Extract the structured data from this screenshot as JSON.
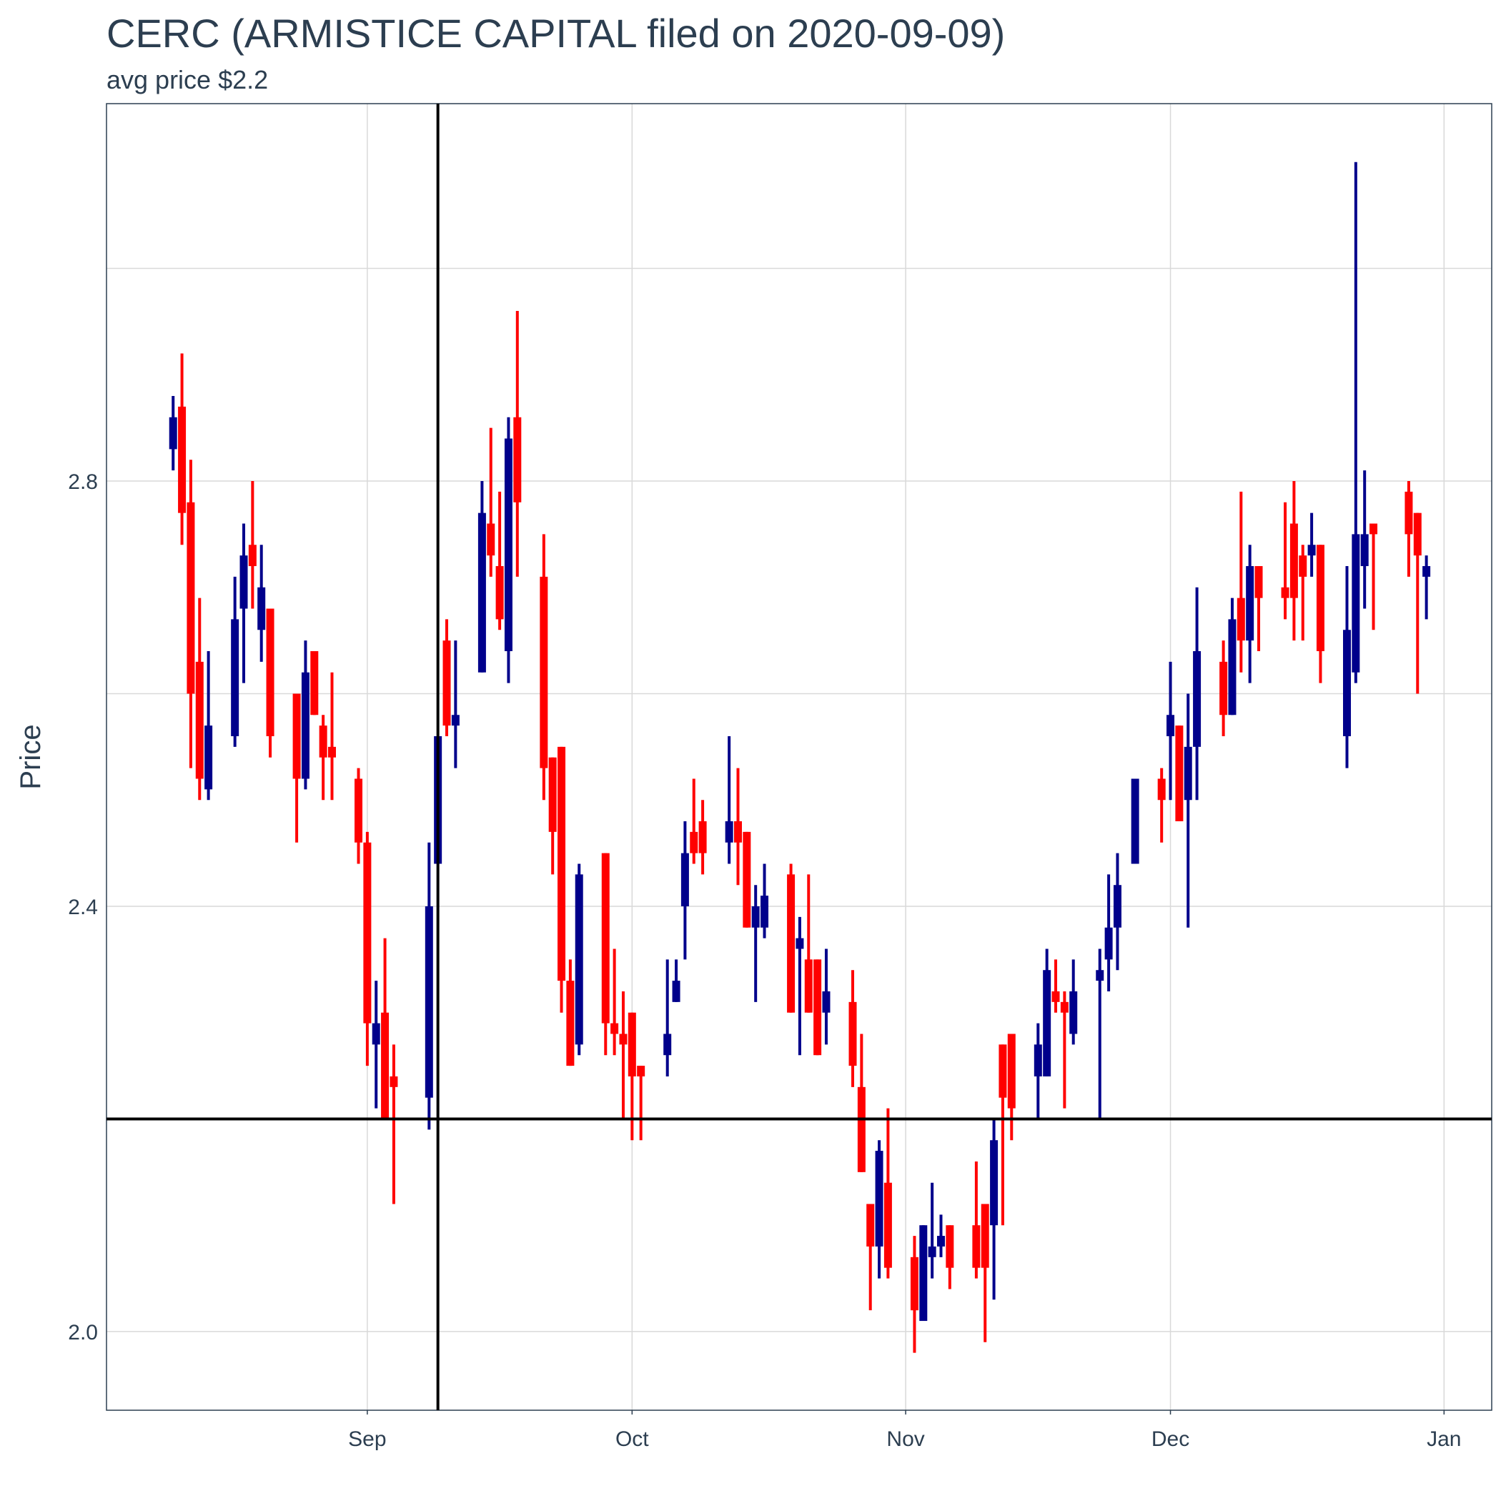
{
  "chart_data": {
    "type": "candlestick",
    "title": "CERC (ARMISTICE CAPITAL filed on 2020-09-09)",
    "subtitle": "avg price $2.2",
    "y_label": "Price",
    "up_color": "#00008b",
    "down_color": "#ff0000",
    "grid": true,
    "xlim": [
      214.45,
      371.4
    ],
    "ylim": [
      1.926,
      3.155
    ],
    "xticks": [
      {
        "value": 244,
        "label": "Sep"
      },
      {
        "value": 274,
        "label": "Oct"
      },
      {
        "value": 305,
        "label": "Nov"
      },
      {
        "value": 335,
        "label": "Dec"
      },
      {
        "value": 366,
        "label": "Jan"
      }
    ],
    "yticks": [
      {
        "value": 2,
        "label": "2.0"
      },
      2.4,
      2.8
    ],
    "y_minor_ticks": [
      2.2,
      2.6,
      3.0
    ],
    "vline": 252,
    "hline": 2.2,
    "x": [
      222,
      223,
      224,
      225,
      226,
      229,
      230,
      231,
      232,
      233,
      236,
      237,
      238,
      239,
      240,
      243,
      244,
      245,
      246,
      247,
      251,
      252,
      253,
      254,
      257,
      258,
      259,
      260,
      261,
      264,
      265,
      266,
      267,
      268,
      271,
      272,
      273,
      274,
      275,
      278,
      279,
      280,
      281,
      282,
      285,
      286,
      287,
      288,
      289,
      292,
      293,
      294,
      295,
      296,
      299,
      300,
      301,
      302,
      303,
      306,
      307,
      308,
      309,
      310,
      313,
      314,
      315,
      316,
      317,
      320,
      321,
      322,
      323,
      324,
      327,
      328,
      329,
      331,
      334,
      335,
      336,
      337,
      338,
      341,
      342,
      343,
      344,
      345,
      348,
      349,
      350,
      351,
      352,
      355,
      356,
      357,
      358,
      362,
      363,
      364
    ],
    "open": [
      2.83,
      2.87,
      2.78,
      2.63,
      2.51,
      2.56,
      2.68,
      2.74,
      2.66,
      2.68,
      2.6,
      2.52,
      2.64,
      2.57,
      2.55,
      2.52,
      2.46,
      2.27,
      2.3,
      2.24,
      2.22,
      2.44,
      2.65,
      2.57,
      2.62,
      2.76,
      2.72,
      2.64,
      2.86,
      2.71,
      2.54,
      2.55,
      2.33,
      2.27,
      2.45,
      2.29,
      2.28,
      2.3,
      2.25,
      2.26,
      2.31,
      2.4,
      2.47,
      2.48,
      2.46,
      2.48,
      2.47,
      2.38,
      2.38,
      2.43,
      2.36,
      2.35,
      2.35,
      2.3,
      2.31,
      2.23,
      2.12,
      2.08,
      2.14,
      2.07,
      2.01,
      2.07,
      2.08,
      2.1,
      2.1,
      2.12,
      2.1,
      2.27,
      2.28,
      2.24,
      2.24,
      2.32,
      2.31,
      2.28,
      2.33,
      2.35,
      2.38,
      2.44,
      2.52,
      2.56,
      2.57,
      2.5,
      2.55,
      2.63,
      2.58,
      2.69,
      2.65,
      2.72,
      2.7,
      2.76,
      2.73,
      2.73,
      2.74,
      2.56,
      2.62,
      2.72,
      2.76,
      2.79,
      2.77,
      2.71
    ],
    "high": [
      2.88,
      2.92,
      2.82,
      2.69,
      2.64,
      2.71,
      2.76,
      2.8,
      2.74,
      2.68,
      2.6,
      2.65,
      2.64,
      2.58,
      2.62,
      2.53,
      2.47,
      2.33,
      2.37,
      2.27,
      2.46,
      2.56,
      2.67,
      2.65,
      2.8,
      2.85,
      2.79,
      2.86,
      2.96,
      2.75,
      2.54,
      2.55,
      2.35,
      2.44,
      2.45,
      2.36,
      2.32,
      2.3,
      2.25,
      2.35,
      2.35,
      2.48,
      2.52,
      2.5,
      2.56,
      2.53,
      2.47,
      2.42,
      2.44,
      2.44,
      2.39,
      2.43,
      2.35,
      2.36,
      2.34,
      2.28,
      2.12,
      2.18,
      2.21,
      2.09,
      2.1,
      2.14,
      2.11,
      2.1,
      2.16,
      2.12,
      2.2,
      2.27,
      2.28,
      2.29,
      2.36,
      2.35,
      2.32,
      2.35,
      2.36,
      2.43,
      2.45,
      2.52,
      2.53,
      2.63,
      2.57,
      2.6,
      2.7,
      2.65,
      2.69,
      2.79,
      2.74,
      2.72,
      2.78,
      2.8,
      2.74,
      2.77,
      2.74,
      2.72,
      3.1,
      2.81,
      2.76,
      2.8,
      2.77,
      2.73
    ],
    "low": [
      2.81,
      2.74,
      2.53,
      2.5,
      2.5,
      2.55,
      2.61,
      2.68,
      2.63,
      2.54,
      2.46,
      2.51,
      2.58,
      2.5,
      2.5,
      2.44,
      2.25,
      2.21,
      2.2,
      2.12,
      2.19,
      2.44,
      2.56,
      2.53,
      2.62,
      2.71,
      2.66,
      2.61,
      2.71,
      2.5,
      2.43,
      2.3,
      2.25,
      2.26,
      2.26,
      2.26,
      2.2,
      2.18,
      2.18,
      2.24,
      2.31,
      2.35,
      2.44,
      2.43,
      2.44,
      2.42,
      2.38,
      2.31,
      2.37,
      2.3,
      2.26,
      2.3,
      2.26,
      2.27,
      2.23,
      2.15,
      2.02,
      2.05,
      2.05,
      1.98,
      2.01,
      2.05,
      2.07,
      2.04,
      2.05,
      1.99,
      2.03,
      2.1,
      2.18,
      2.2,
      2.24,
      2.3,
      2.21,
      2.27,
      2.2,
      2.32,
      2.34,
      2.44,
      2.46,
      2.5,
      2.48,
      2.38,
      2.5,
      2.56,
      2.58,
      2.62,
      2.61,
      2.64,
      2.67,
      2.65,
      2.65,
      2.71,
      2.61,
      2.53,
      2.61,
      2.68,
      2.66,
      2.71,
      2.6,
      2.67
    ],
    "close": [
      2.86,
      2.77,
      2.6,
      2.52,
      2.57,
      2.67,
      2.73,
      2.72,
      2.7,
      2.56,
      2.52,
      2.62,
      2.58,
      2.54,
      2.54,
      2.46,
      2.29,
      2.29,
      2.2,
      2.23,
      2.4,
      2.56,
      2.57,
      2.58,
      2.77,
      2.73,
      2.67,
      2.84,
      2.78,
      2.53,
      2.47,
      2.33,
      2.25,
      2.43,
      2.29,
      2.28,
      2.27,
      2.24,
      2.24,
      2.28,
      2.33,
      2.45,
      2.45,
      2.45,
      2.48,
      2.46,
      2.38,
      2.4,
      2.41,
      2.3,
      2.37,
      2.3,
      2.26,
      2.32,
      2.25,
      2.15,
      2.08,
      2.17,
      2.06,
      2.02,
      2.1,
      2.08,
      2.09,
      2.06,
      2.06,
      2.06,
      2.18,
      2.22,
      2.21,
      2.27,
      2.34,
      2.31,
      2.3,
      2.32,
      2.34,
      2.38,
      2.42,
      2.52,
      2.5,
      2.58,
      2.48,
      2.55,
      2.64,
      2.58,
      2.67,
      2.65,
      2.72,
      2.69,
      2.69,
      2.69,
      2.71,
      2.74,
      2.64,
      2.66,
      2.75,
      2.75,
      2.75,
      2.75,
      2.73,
      2.72
    ]
  }
}
